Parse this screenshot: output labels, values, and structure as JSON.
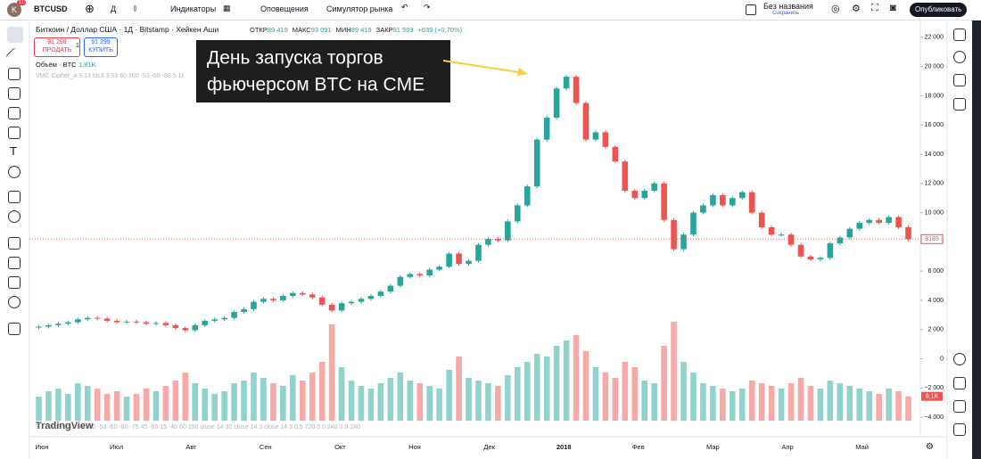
{
  "toolbar": {
    "avatar": "K",
    "badge": "11",
    "symbol": "BTCUSD",
    "interval": "Д",
    "indicators": "Индикаторы",
    "alerts": "Оповещения",
    "replay": "Симулятор рынка",
    "layout_name": "Без названия",
    "saved": "Сохранить",
    "publish": "Опубликовать"
  },
  "legend": {
    "title": "Биткоин / Доллар США · 1Д · Bitstamp · Хейкен Аши",
    "ohlc": [
      {
        "label": "ОТКР",
        "value": "89 419"
      },
      {
        "label": "МАКС",
        "value": "93 091"
      },
      {
        "label": "МИН",
        "value": "89 419"
      },
      {
        "label": "ЗАКР",
        "value": "91 593"
      }
    ],
    "change": "+639 (+0,70%)",
    "sell_price": "91 298",
    "sell": "ПРОДАТЬ",
    "spread": "1",
    "buy_price": "91 299",
    "buy": "КУПИТЬ",
    "volume_name": "Объём · BTC",
    "volume_value": "1,81K",
    "indicator": "VMC Cipher_A 9 13 hlc3 3 53 60 100 -53 -60 -80 5 11"
  },
  "annotation": {
    "lines": [
      "День запуска торгов",
      "фьючерсом BTC на CME"
    ]
  },
  "xaxis": {
    "labels": [
      "Июн",
      "Июл",
      "Авг",
      "Сен",
      "Окт",
      "Ноя",
      "Дек",
      "2018",
      "Фев",
      "Мар",
      "Апр",
      "Май"
    ],
    "faded": "9 12 hlc3 3 53 60 100 -53 -60 -80 -75 45 -65 15 -40 60 150 close 14 30 close 14 3 close 14 3 0,5 720 0 0 240 0 0 240"
  },
  "logo": "TradingView",
  "chart_data": {
    "type": "candlestick",
    "open": 2150,
    "close": [
      2200,
      2300,
      2400,
      2500,
      2700,
      2800,
      2750,
      2600,
      2500,
      2550,
      2500,
      2400,
      2450,
      2300,
      2100,
      1950,
      2300,
      2600,
      2700,
      2800,
      3200,
      3400,
      3900,
      4100,
      4000,
      4300,
      4500,
      4400,
      4200,
      3700,
      3300,
      3800,
      3900,
      4100,
      4300,
      4600,
      5000,
      5600,
      5800,
      5700,
      6100,
      6300,
      7200,
      6500,
      6700,
      7800,
      8200,
      8100,
      9400,
      10500,
      11800,
      15000,
      16500,
      18500,
      19300,
      17500,
      15000,
      15500,
      14500,
      13500,
      11500,
      11000,
      11500,
      12000,
      9500,
      7500,
      8500,
      10000,
      10500,
      11200,
      10500,
      11000,
      11400,
      10000,
      9000,
      8500,
      8500,
      7800,
      7000,
      6800,
      6900,
      7900,
      8300,
      8900,
      9300,
      9500,
      9300,
      9700,
      9000,
      8189
    ],
    "volume": [
      9,
      11,
      12,
      10,
      14,
      13,
      12,
      10,
      11,
      9,
      10,
      12,
      11,
      13,
      15,
      18,
      14,
      12,
      10,
      11,
      14,
      15,
      18,
      16,
      14,
      13,
      17,
      15,
      18,
      22,
      36,
      20,
      15,
      13,
      12,
      14,
      16,
      18,
      15,
      14,
      13,
      12,
      19,
      24,
      16,
      15,
      14,
      13,
      17,
      20,
      22,
      25,
      24,
      28,
      30,
      32,
      26,
      20,
      18,
      16,
      22,
      20,
      15,
      14,
      28,
      37,
      22,
      18,
      14,
      13,
      12,
      11,
      12,
      15,
      14,
      13,
      12,
      14,
      16,
      13,
      12,
      15,
      14,
      13,
      12,
      11,
      10,
      12,
      11,
      9.1
    ],
    "volume_label": "9,1K",
    "ylim": [
      -4600,
      22600
    ],
    "yticks": [
      {
        "value": 22000,
        "label": "22 000"
      },
      {
        "value": 20000,
        "label": "20 000"
      },
      {
        "value": 18000,
        "label": "18 000"
      },
      {
        "value": 16000,
        "label": "16 000"
      },
      {
        "value": 14000,
        "label": "14 000"
      },
      {
        "value": 12000,
        "label": "12 000"
      },
      {
        "value": 10000,
        "label": "10 000"
      },
      {
        "value": 8000,
        "label": "8 000"
      },
      {
        "value": 6000,
        "label": "6 000"
      },
      {
        "value": 4000,
        "label": "4 000"
      },
      {
        "value": 2000,
        "label": "2 000"
      },
      0,
      {
        "value": -2000,
        "label": "−2 000"
      },
      {
        "value": -4000,
        "label": "−4 000"
      }
    ],
    "up_color": "#26a69a",
    "down_color": "#ef5350"
  }
}
